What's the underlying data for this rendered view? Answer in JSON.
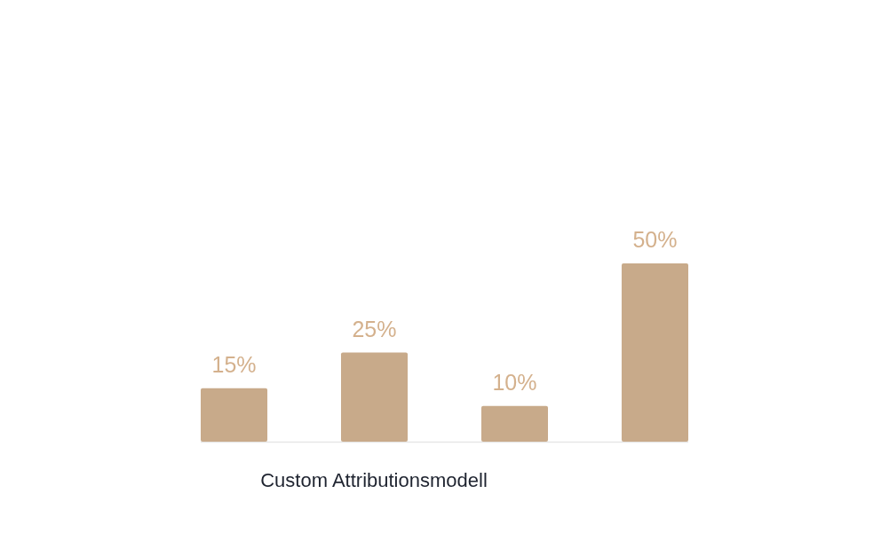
{
  "chart_data": {
    "type": "bar",
    "xlabel": "Custom Attributionsmodell",
    "categories": [
      null,
      null,
      null,
      null
    ],
    "values": [
      15,
      25,
      10,
      50
    ],
    "value_labels": [
      "15%",
      "25%",
      "10%",
      "50%"
    ],
    "color": "#c8aa8a"
  }
}
